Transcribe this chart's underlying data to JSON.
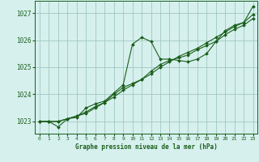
{
  "bg_color": "#d6f0ee",
  "plot_bg": "#d6f0ee",
  "grid_color": "#a0c8c0",
  "line_color": "#1a5e1a",
  "xlabel": "Graphe pression niveau de la mer (hPa)",
  "ylim": [
    1022.55,
    1027.45
  ],
  "xlim": [
    -0.5,
    23.5
  ],
  "yticks": [
    1023,
    1024,
    1025,
    1026,
    1027
  ],
  "xticks": [
    0,
    1,
    2,
    3,
    4,
    5,
    6,
    7,
    8,
    9,
    10,
    11,
    12,
    13,
    14,
    15,
    16,
    17,
    18,
    19,
    20,
    21,
    22,
    23
  ],
  "series": [
    [
      1023.0,
      1023.0,
      1022.8,
      1023.1,
      1023.15,
      1023.5,
      1023.65,
      1023.75,
      1024.05,
      1024.35,
      1025.85,
      1026.1,
      1025.95,
      1025.3,
      1025.3,
      1025.25,
      1025.2,
      1025.3,
      1025.5,
      1025.95,
      1026.35,
      1026.55,
      1026.65,
      1027.25
    ],
    [
      1023.0,
      1023.0,
      1023.0,
      1023.1,
      1023.2,
      1023.35,
      1023.55,
      1023.7,
      1024.0,
      1024.25,
      1024.4,
      1024.55,
      1024.85,
      1025.1,
      1025.25,
      1025.35,
      1025.45,
      1025.65,
      1025.8,
      1025.95,
      1026.2,
      1026.4,
      1026.55,
      1026.8
    ],
    [
      1023.0,
      1023.0,
      1023.0,
      1023.1,
      1023.2,
      1023.3,
      1023.5,
      1023.7,
      1023.9,
      1024.15,
      1024.35,
      1024.55,
      1024.75,
      1025.0,
      1025.2,
      1025.4,
      1025.55,
      1025.7,
      1025.9,
      1026.1,
      1026.3,
      1026.5,
      1026.65,
      1026.95
    ]
  ]
}
